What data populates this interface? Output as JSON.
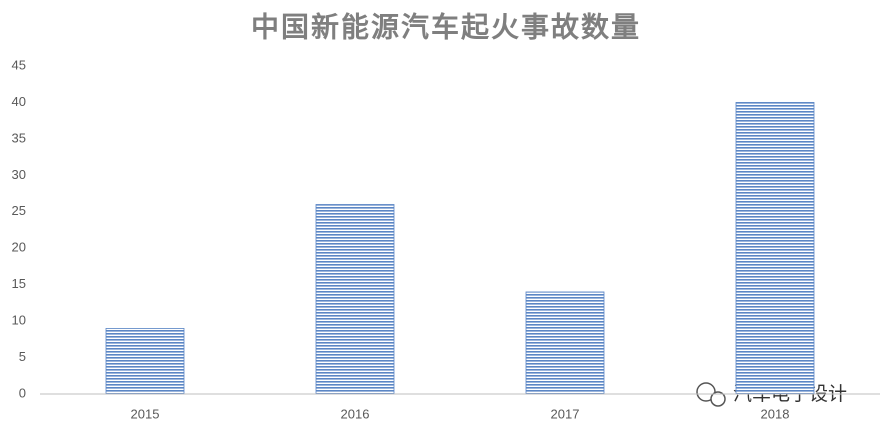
{
  "chart_data": {
    "type": "bar",
    "title": "中国新能源汽车起火事故数量",
    "categories": [
      "2015",
      "2016",
      "2017",
      "2018"
    ],
    "values": [
      9,
      26,
      14,
      40
    ],
    "color": "#5b86c5",
    "ylim": [
      0,
      45
    ],
    "yticks": [
      0,
      5,
      10,
      15,
      20,
      25,
      30,
      35,
      40,
      45
    ],
    "grid": false,
    "watermark": "汽车电子设计"
  }
}
